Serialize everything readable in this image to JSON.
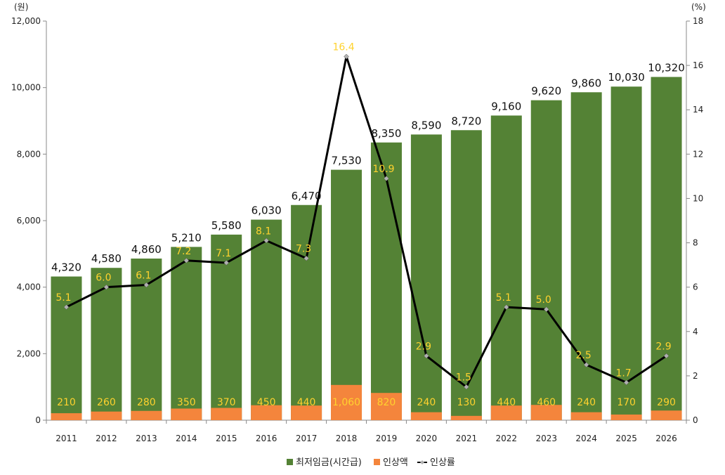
{
  "chart_data": {
    "type": "bar",
    "categories": [
      "2011",
      "2012",
      "2013",
      "2014",
      "2015",
      "2016",
      "2017",
      "2018",
      "2019",
      "2020",
      "2021",
      "2022",
      "2023",
      "2024",
      "2025",
      "2026"
    ],
    "series": [
      {
        "name": "최저임금(시간급)",
        "kind": "bar",
        "axis": "left",
        "values": [
          4320,
          4580,
          4860,
          5210,
          5580,
          6030,
          6470,
          7530,
          8350,
          8590,
          8720,
          9160,
          9620,
          9860,
          10030,
          10320
        ],
        "labels": [
          "4,320",
          "4,580",
          "4,860",
          "5,210",
          "5,580",
          "6,030",
          "6,470",
          "7,530",
          "8,350",
          "8,590",
          "8,720",
          "9,160",
          "9,620",
          "9,860",
          "10,030",
          "10,320"
        ]
      },
      {
        "name": "인상액",
        "kind": "bar",
        "axis": "left",
        "values": [
          210,
          260,
          280,
          350,
          370,
          450,
          440,
          1060,
          820,
          240,
          130,
          440,
          460,
          240,
          170,
          290
        ],
        "labels": [
          "210",
          "260",
          "280",
          "350",
          "370",
          "450",
          "440",
          "1,060",
          "820",
          "240",
          "130",
          "440",
          "460",
          "240",
          "170",
          "290"
        ]
      },
      {
        "name": "인상률",
        "kind": "line",
        "axis": "right",
        "values": [
          5.1,
          6.0,
          6.1,
          7.2,
          7.1,
          8.1,
          7.3,
          16.4,
          10.9,
          2.9,
          1.5,
          5.1,
          5.0,
          2.5,
          1.7,
          2.9
        ],
        "labels": [
          "5.1",
          "6.0",
          "6.1",
          "7.2",
          "7.1",
          "8.1",
          "7.3",
          "16.4",
          "10.9",
          "2.9",
          "1.5",
          "5.1",
          "5.0",
          "2.5",
          "1.7",
          "2.9"
        ]
      }
    ],
    "y_left": {
      "unit": "(원)",
      "ylim": [
        0,
        12000
      ],
      "ticks": [
        "0",
        "2,000",
        "4,000",
        "6,000",
        "8,000",
        "10,000",
        "12,000"
      ]
    },
    "y_right": {
      "unit": "(%)",
      "ylim": [
        0,
        18
      ],
      "ticks": [
        "0",
        "2",
        "4",
        "6",
        "8",
        "10",
        "12",
        "14",
        "16",
        "18"
      ]
    },
    "legend": {
      "position": "bottom",
      "items": [
        "최저임금(시간급)",
        "인상액",
        "인상률"
      ]
    },
    "colors": {
      "wage": "#548235",
      "increase": "#F4853C",
      "rate_line": "#000000",
      "rate_marker": "#B0B0B0",
      "label_yellow": "#FFD22E",
      "axis": "#888888"
    }
  }
}
